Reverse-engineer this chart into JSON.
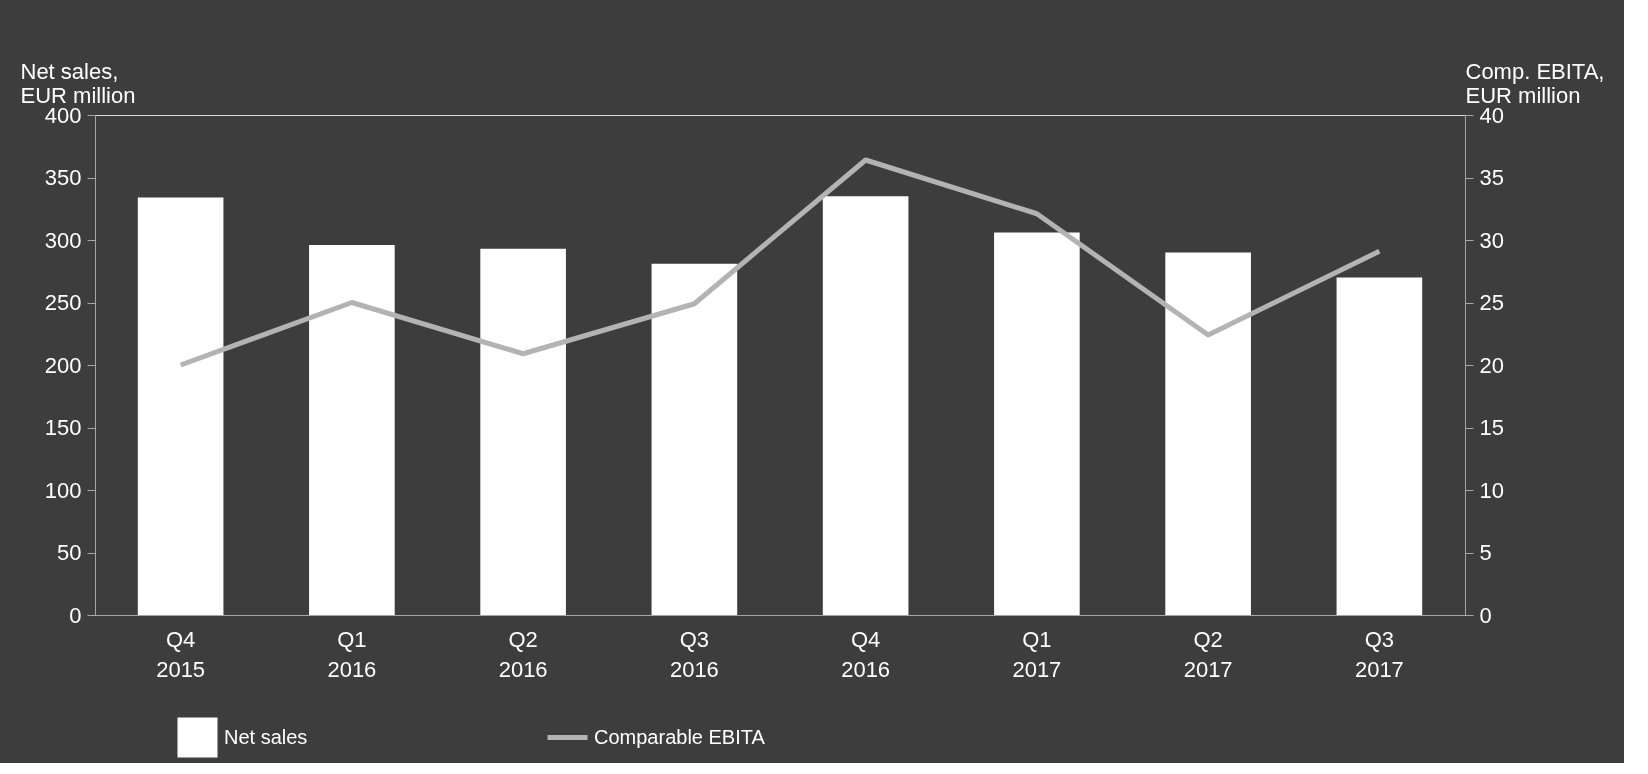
{
  "chart_data": {
    "type": "bar",
    "categories": [
      "Q4 2015",
      "Q1 2016",
      "Q2 2016",
      "Q3 2016",
      "Q4 2016",
      "Q1 2017",
      "Q2 2017",
      "Q3 2017"
    ],
    "ylabel": "Net sales,\nEUR million",
    "y2label": "Comp. EBITA,\nEUR million",
    "series": [
      {
        "name": "Net sales",
        "color": "#ffffff",
        "values": [
          334,
          296,
          293,
          281,
          335,
          306,
          290,
          270
        ]
      },
      {
        "name": "Comparable EBITA",
        "type": "line",
        "axis": "y2",
        "color": "#b3b3b3",
        "values": [
          20,
          25,
          20.9,
          24.9,
          36.4,
          32.1,
          22.4,
          29.1
        ]
      }
    ],
    "ylim": [
      0,
      400
    ],
    "yticks": [
      0,
      50,
      100,
      150,
      200,
      250,
      300,
      350,
      400
    ],
    "y2lim": [
      0,
      40
    ],
    "y2ticks": [
      0,
      5,
      10,
      15,
      20,
      25,
      30,
      35,
      40
    ],
    "grid": false,
    "legend": "bottom",
    "marker": "none",
    "line_style": "solid"
  }
}
